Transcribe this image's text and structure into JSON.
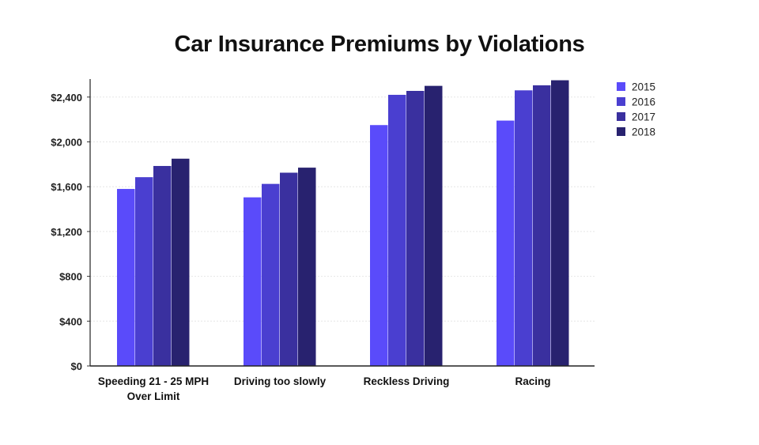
{
  "chart_data": {
    "type": "bar",
    "title": "Car Insurance Premiums by Violations",
    "xlabel": "",
    "ylabel": "",
    "categories": [
      [
        "Speeding 21 - 25 MPH",
        "Over Limit"
      ],
      [
        "Driving too slowly"
      ],
      [
        "Reckless Driving"
      ],
      [
        "Racing"
      ]
    ],
    "series": [
      {
        "name": "2015",
        "color": "#5a4bfa",
        "values": [
          1580,
          1505,
          2150,
          2190
        ]
      },
      {
        "name": "2016",
        "color": "#4a3fd0",
        "values": [
          1685,
          1625,
          2420,
          2460
        ]
      },
      {
        "name": "2017",
        "color": "#3a309f",
        "values": [
          1785,
          1725,
          2455,
          2505
        ]
      },
      {
        "name": "2018",
        "color": "#28226f",
        "values": [
          1850,
          1770,
          2500,
          2550
        ]
      }
    ],
    "ylim": [
      0,
      2550
    ],
    "yticks": [
      0,
      400,
      800,
      1200,
      1600,
      2000,
      2400
    ],
    "ytick_labels": [
      "$0",
      "$400",
      "$800",
      "$1,200",
      "$1,600",
      "$2,000",
      "$2,400"
    ],
    "grid": true,
    "legend": "right"
  }
}
